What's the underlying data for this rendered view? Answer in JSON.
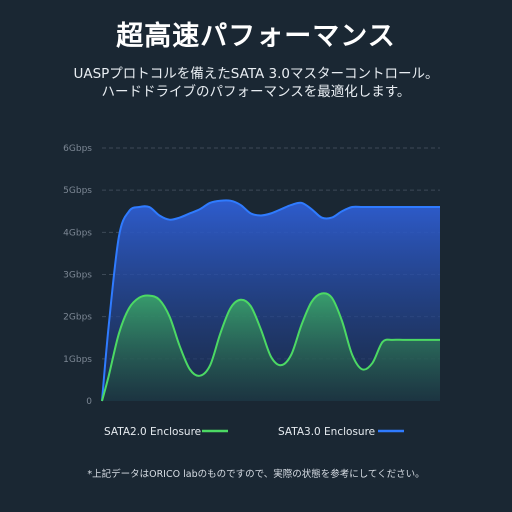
{
  "header": {
    "title": "超高速パフォーマンス",
    "subtitle_line1": "UASPプロトコルを備えたSATA 3.0マスターコントロール。",
    "subtitle_line2": "ハードドライブのパフォーマンスを最適化します。"
  },
  "footnote": "*上記データはORICO labのものですので、実際の状態を参考にしてください。",
  "colors": {
    "background": "#1a2733",
    "sata2": "#4cd964",
    "sata3": "#2f7bff"
  },
  "chart_data": {
    "type": "area",
    "title": "",
    "xlabel": "",
    "ylabel": "",
    "ylim": [
      0,
      6
    ],
    "y_ticks": [
      0,
      1,
      2,
      3,
      4,
      5,
      6
    ],
    "y_tick_labels": [
      "0",
      "1Gbps",
      "2Gbps",
      "3Gbps",
      "4Gbps",
      "5Gbps",
      "6Gbps"
    ],
    "grid": true,
    "legend_position": "bottom",
    "x": [
      0,
      0.02,
      0.05,
      0.08,
      0.11,
      0.14,
      0.17,
      0.2,
      0.23,
      0.26,
      0.29,
      0.32,
      0.35,
      0.38,
      0.41,
      0.44,
      0.47,
      0.5,
      0.53,
      0.56,
      0.59,
      0.62,
      0.65,
      0.68,
      0.71,
      0.74,
      0.77,
      0.8,
      0.83,
      0.86,
      0.89,
      0.92,
      0.95,
      0.98,
      1.0
    ],
    "series": [
      {
        "name": "SATA2.0 Enclosure",
        "values": [
          0,
          0.6,
          1.6,
          2.2,
          2.45,
          2.5,
          2.4,
          2.0,
          1.3,
          0.75,
          0.6,
          0.85,
          1.6,
          2.2,
          2.4,
          2.25,
          1.7,
          1.05,
          0.85,
          1.1,
          1.8,
          2.35,
          2.55,
          2.45,
          1.9,
          1.1,
          0.75,
          0.9,
          1.4,
          1.45,
          1.45,
          1.45,
          1.45,
          1.45,
          1.45
        ]
      },
      {
        "name": "SATA3.0 Enclosure",
        "values": [
          0,
          1.8,
          3.9,
          4.5,
          4.6,
          4.6,
          4.4,
          4.3,
          4.35,
          4.45,
          4.55,
          4.7,
          4.75,
          4.75,
          4.65,
          4.45,
          4.4,
          4.45,
          4.55,
          4.65,
          4.7,
          4.55,
          4.35,
          4.35,
          4.5,
          4.6,
          4.6,
          4.6,
          4.6,
          4.6,
          4.6,
          4.6,
          4.6,
          4.6,
          4.6
        ]
      }
    ]
  }
}
